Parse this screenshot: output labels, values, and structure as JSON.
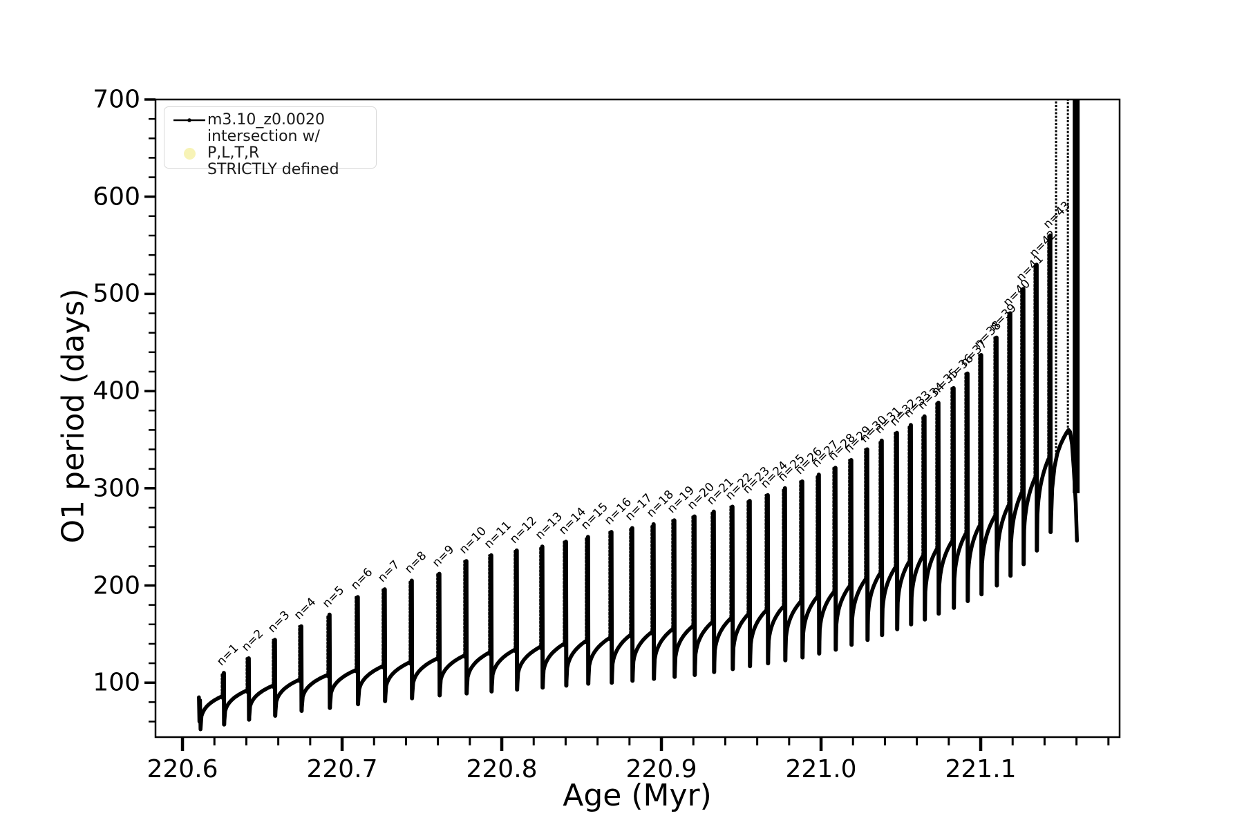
{
  "figure": {
    "background": "#ffffff",
    "curve_color": "#000000"
  },
  "axes": {
    "xlabel": "Age (Myr)",
    "ylabel": "O1 period (days)",
    "xlim": [
      220.5831,
      221.187
    ],
    "ylim": [
      44,
      700
    ],
    "xticks_major": [
      220.6,
      220.7,
      220.8,
      220.9,
      221.0,
      221.1
    ],
    "xtick_labels": [
      "220.6",
      "220.7",
      "220.8",
      "220.9",
      "221.0",
      "221.1"
    ],
    "xtick_minor_step": 0.02,
    "yticks_major": [
      100,
      200,
      300,
      400,
      500,
      600,
      700
    ],
    "ytick_labels": [
      "100",
      "200",
      "300",
      "400",
      "500",
      "600",
      "700"
    ],
    "ytick_minor_step": 20,
    "grid": false
  },
  "legend": {
    "location": "upper left",
    "entries": [
      {
        "label": "m3.10_z0.0020",
        "marker": "line-with-dot",
        "color": "#000000"
      },
      {
        "label_line1": "intersection w/ P,L,T,R",
        "label_line2": "STRICTLY defined",
        "marker": "circle",
        "color": "#f7f3b6"
      }
    ]
  },
  "chart_data": {
    "type": "line",
    "series_name": "m3.10_z0.0020",
    "title": "",
    "xlabel": "Age (Myr)",
    "ylabel": "O1 period (days)",
    "x_range": [
      220.583,
      221.187
    ],
    "y_range": [
      44,
      700
    ],
    "legend_position": "upper left",
    "spike_label_format": "n={n}",
    "cycles_columns": [
      "n",
      "age_Myr",
      "spike_peak_days",
      "plateau_days",
      "dip_days"
    ],
    "cycles": [
      [
        1,
        220.6247,
        110,
        86,
        57
      ],
      [
        2,
        220.6403,
        125,
        92,
        62
      ],
      [
        3,
        220.6567,
        144,
        97,
        66
      ],
      [
        4,
        220.6732,
        158,
        103,
        71
      ],
      [
        5,
        220.6909,
        170,
        108,
        74
      ],
      [
        6,
        220.7086,
        188,
        113,
        78
      ],
      [
        7,
        220.7255,
        196,
        117,
        81
      ],
      [
        8,
        220.7424,
        205,
        121,
        84
      ],
      [
        9,
        220.7597,
        212,
        125,
        87
      ],
      [
        10,
        220.7766,
        225,
        128,
        89
      ],
      [
        11,
        220.7922,
        231,
        131,
        91
      ],
      [
        12,
        220.8082,
        236,
        134,
        93
      ],
      [
        13,
        220.8242,
        240,
        137,
        95
      ],
      [
        14,
        220.839,
        245,
        140,
        97
      ],
      [
        15,
        220.8528,
        250,
        143,
        99
      ],
      [
        16,
        220.8675,
        255,
        146,
        100
      ],
      [
        17,
        220.8805,
        259,
        149,
        102
      ],
      [
        18,
        220.8939,
        263,
        152,
        104
      ],
      [
        19,
        220.9069,
        267,
        155,
        106
      ],
      [
        20,
        220.9195,
        271,
        158,
        108
      ],
      [
        21,
        220.9316,
        276,
        162,
        111
      ],
      [
        22,
        220.9433,
        281,
        166,
        114
      ],
      [
        23,
        220.9541,
        287,
        170,
        117
      ],
      [
        24,
        220.9654,
        293,
        174,
        120
      ],
      [
        25,
        220.9762,
        300,
        178,
        123
      ],
      [
        26,
        220.987,
        307,
        183,
        126
      ],
      [
        27,
        220.9974,
        314,
        188,
        130
      ],
      [
        28,
        221.0078,
        321,
        193,
        134
      ],
      [
        29,
        221.0177,
        329,
        199,
        139
      ],
      [
        30,
        221.0277,
        340,
        206,
        144
      ],
      [
        31,
        221.0368,
        349,
        212,
        149
      ],
      [
        32,
        221.0463,
        357,
        218,
        155
      ],
      [
        33,
        221.055,
        365,
        224,
        160
      ],
      [
        34,
        221.0636,
        374,
        230,
        165
      ],
      [
        35,
        221.0723,
        388,
        237,
        171
      ],
      [
        36,
        221.0818,
        403,
        245,
        177
      ],
      [
        37,
        221.0905,
        418,
        253,
        184
      ],
      [
        38,
        221.0991,
        437,
        261,
        191
      ],
      [
        39,
        221.1087,
        455,
        271,
        200
      ],
      [
        40,
        221.1173,
        480,
        282,
        210
      ],
      [
        41,
        221.1255,
        505,
        295,
        222
      ],
      [
        42,
        221.1338,
        530,
        310,
        236
      ],
      [
        43,
        221.1424,
        560,
        330,
        255
      ]
    ],
    "start_points": [
      [
        220.6103,
        85
      ],
      [
        220.6106,
        60
      ],
      [
        220.611,
        82
      ],
      [
        220.6113,
        52
      ]
    ],
    "tail_points": [
      [
        221.1438,
        255
      ],
      [
        221.1448,
        300
      ],
      [
        221.1462,
        322
      ],
      [
        221.148,
        336
      ],
      [
        221.15,
        345
      ],
      [
        221.152,
        352
      ],
      [
        221.1537,
        357
      ],
      [
        221.155,
        360
      ],
      [
        221.156,
        358
      ],
      [
        221.1572,
        345
      ],
      [
        221.1583,
        320
      ],
      [
        221.1595,
        285
      ],
      [
        221.1603,
        246
      ]
    ],
    "offscale_spikes_columns": [
      "age_Myr",
      "base_days",
      "top_days",
      "stroke_px"
    ],
    "offscale_spikes": [
      [
        221.1472,
        330,
        710,
        3
      ],
      [
        221.1546,
        355,
        710,
        3
      ],
      [
        221.1598,
        295,
        710,
        10
      ]
    ]
  }
}
